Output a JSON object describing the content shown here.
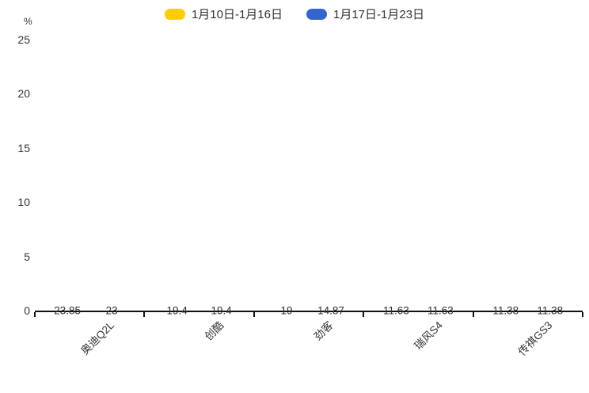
{
  "chart_data": {
    "type": "bar",
    "title": "",
    "xlabel": "",
    "ylabel": "%",
    "unit_label": "%",
    "categories": [
      "奥迪Q2L",
      "创酷",
      "劲客",
      "瑞风S4",
      "传祺GS3"
    ],
    "series": [
      {
        "name": "1月10日-1月16日",
        "color": "#FFCC00",
        "values": [
          23.85,
          19.4,
          19,
          11.63,
          11.38
        ]
      },
      {
        "name": "1月17日-1月23日",
        "color": "#3366CC",
        "values": [
          23,
          19.4,
          14.87,
          11.63,
          11.38
        ]
      }
    ],
    "ylim": [
      0,
      25
    ],
    "y_ticks": [
      0,
      5,
      10,
      15,
      20,
      25
    ],
    "grid": false,
    "legend_position": "top-center",
    "bar_label_color": "#333333",
    "axis_color": "#111111"
  }
}
